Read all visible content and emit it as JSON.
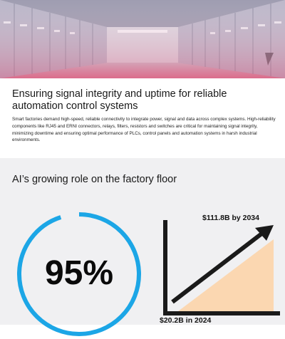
{
  "hero": {
    "image_alt": "Industrial control cabinets in a server-room style aisle"
  },
  "article": {
    "headline": "Ensuring signal integrity and uptime for reliable automation control systems",
    "body": "Smart factories demand high-speed, reliable connectivity to integrate power, signal and data across complex systems. High-reliability components like RJ45 and ERNI connectors, relays, filters, resistors and switches are critical for maintaining signal integrity, minimizing downtime and ensuring optimal performance of PLCs, control panels and automation systems in harsh industrial environments."
  },
  "stats": {
    "section_title": "AI’s growing role on the factory floor",
    "percentage": {
      "value_text": "95%",
      "value": 95,
      "ring_color": "#1ca6e6"
    },
    "growth": {
      "start_label": "$20.2B in 2024",
      "end_label": "$111.8B by 2034",
      "fill_color": "#fbd7b1",
      "line_color": "#1a1a1a"
    }
  }
}
